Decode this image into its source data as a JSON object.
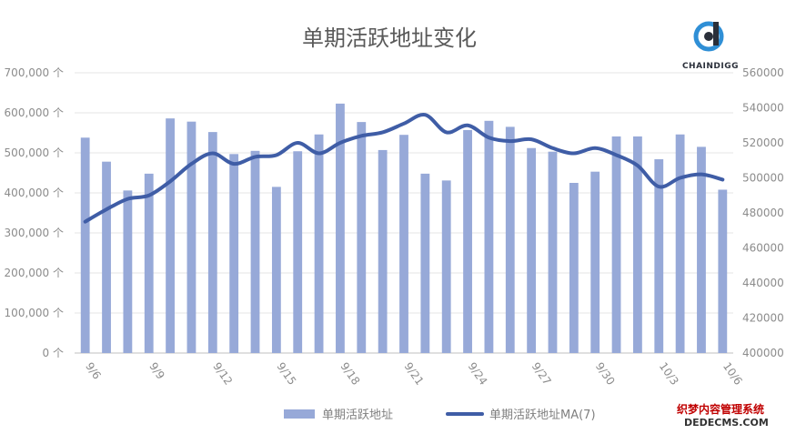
{
  "chart_data": {
    "type": "bar",
    "title": "单期活跃地址变化",
    "categories": [
      "9/6",
      "9/7",
      "9/8",
      "9/9",
      "9/10",
      "9/11",
      "9/12",
      "9/13",
      "9/14",
      "9/15",
      "9/16",
      "9/17",
      "9/18",
      "9/19",
      "9/20",
      "9/21",
      "9/22",
      "9/23",
      "9/24",
      "9/25",
      "9/26",
      "9/27",
      "9/28",
      "9/29",
      "9/30",
      "10/1",
      "10/2",
      "10/3",
      "10/4",
      "10/5",
      "10/6"
    ],
    "x_tick_labels": [
      "9/6",
      "9/9",
      "9/12",
      "9/15",
      "9/18",
      "9/21",
      "9/24",
      "9/27",
      "9/30",
      "10/3",
      "10/6"
    ],
    "y_left": {
      "ylim": [
        0,
        700000
      ],
      "tick_labels": [
        "0 个",
        "100,000 个",
        "200,000 个",
        "300,000 个",
        "400,000 个",
        "500,000 个",
        "600,000 个",
        "700,000 个"
      ]
    },
    "y_right": {
      "ylim": [
        400000,
        560000
      ],
      "tick_labels": [
        "400000",
        "420000",
        "440000",
        "460000",
        "480000",
        "500000",
        "520000",
        "540000",
        "560000"
      ]
    },
    "grid": true,
    "legend_position": "bottom",
    "series": [
      {
        "name": "单期活跃地址",
        "type": "bar",
        "axis": "left",
        "color": "#97a9d8",
        "values": [
          538000,
          478000,
          406000,
          448000,
          586000,
          578000,
          552000,
          497000,
          505000,
          415000,
          504000,
          546000,
          623000,
          577000,
          507000,
          545000,
          448000,
          431000,
          557000,
          580000,
          565000,
          512000,
          503000,
          425000,
          453000,
          541000,
          541000,
          484000,
          546000,
          515000,
          408000
        ]
      },
      {
        "name": "单期活跃地址MA(7)",
        "type": "line",
        "axis": "right",
        "color": "#3f5da6",
        "values": [
          475000,
          482000,
          488000,
          490000,
          498000,
          508000,
          514000,
          508000,
          512000,
          513000,
          520000,
          514000,
          520000,
          524000,
          526000,
          531000,
          536000,
          526000,
          530000,
          523000,
          521000,
          522000,
          517000,
          514000,
          517000,
          513000,
          507000,
          495000,
          500000,
          502000,
          499000
        ]
      }
    ]
  },
  "logo": {
    "text": "CHAINDIGG"
  },
  "watermark": {
    "line1": "织梦内容管理系统",
    "line2": "DEDECMS.COM"
  }
}
